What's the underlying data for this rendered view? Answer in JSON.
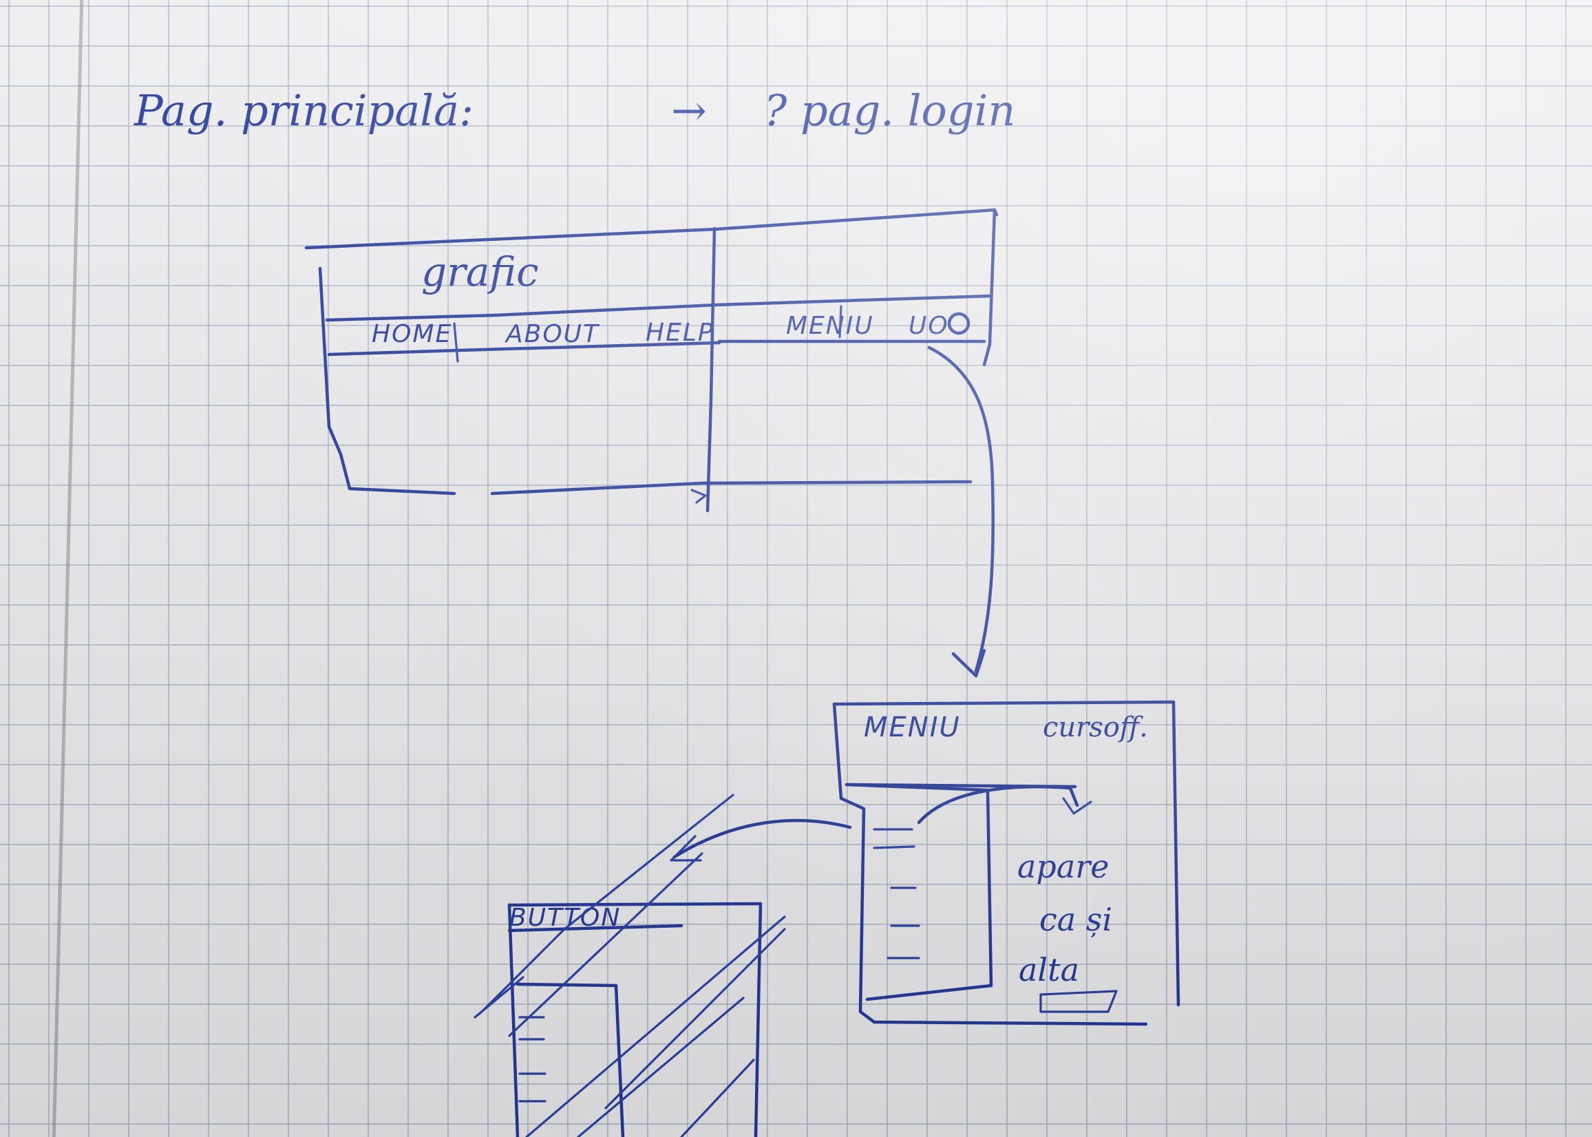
{
  "heading": {
    "left": "Pag. principală:",
    "arrow": "→",
    "right": "? pag. login"
  },
  "main_page": {
    "graphic_label": "grafic",
    "nav_items": [
      "HOME",
      "ABOUT",
      "HELP"
    ],
    "right_nav": "MENIU",
    "user_icon_label": "UO"
  },
  "login_page": {
    "header_left": "MENIU",
    "header_right": "cursoff."
  },
  "content_panel": {
    "lines": [
      "apare",
      "ca și",
      "alta"
    ]
  },
  "crossed_page": {
    "header": "BUTTON"
  }
}
